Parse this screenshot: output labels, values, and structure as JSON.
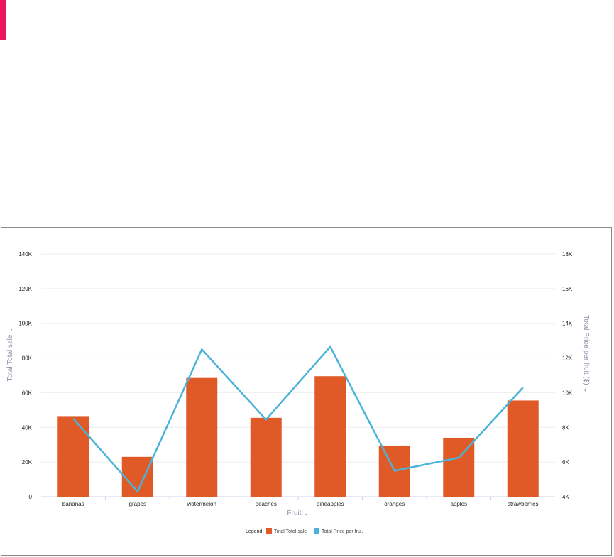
{
  "colors": {
    "accent_bar": "#e8175d",
    "bar": "#e05a28",
    "line": "#4bb3d8",
    "grid": "#eeeeee",
    "axis_title": "#8a8fa8"
  },
  "chart_data": {
    "type": "bar",
    "categories": [
      "bananas",
      "grapes",
      "watermelon",
      "peaches",
      "pineapples",
      "oranges",
      "apples",
      "strawberries"
    ],
    "series": [
      {
        "name": "Total Total sale",
        "type": "bar",
        "axis": "left",
        "values": [
          46500,
          23000,
          68500,
          45500,
          69500,
          29500,
          34000,
          55500
        ]
      },
      {
        "name": "Total Price per fruit ($)",
        "type": "line",
        "axis": "right",
        "values": [
          8500,
          4300,
          12500,
          8450,
          12650,
          5500,
          6250,
          10300
        ]
      }
    ],
    "xlabel": "Fruit",
    "ylabel": "Total Total sale",
    "y2label": "Total Price per fruit ($)",
    "ylim": [
      0,
      140000
    ],
    "y2lim": [
      4000,
      18000
    ],
    "yticks": [
      "0",
      "20K",
      "40K",
      "60K",
      "80K",
      "100K",
      "120K",
      "140K"
    ],
    "y2ticks": [
      "4K",
      "6K",
      "8K",
      "10K",
      "12K",
      "14K",
      "16K",
      "18K"
    ],
    "grid": true,
    "legend": {
      "title": "Legend",
      "placement": "bottom",
      "entries": [
        "Total Total sale",
        "Total Price per fru.."
      ]
    }
  }
}
